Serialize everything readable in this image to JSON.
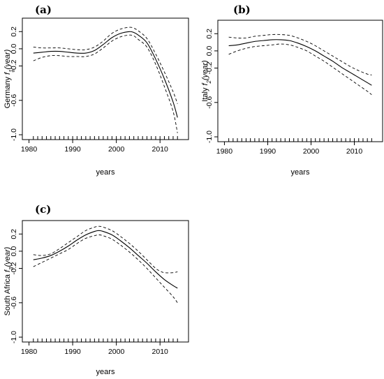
{
  "chart_data": [
    {
      "type": "line",
      "panel_label": "(a)",
      "xlabel": "years",
      "ylabel_prefix": "Germany ",
      "ylabel_f": "f",
      "ylabel_sub": "1",
      "ylabel_suffix": "(year)",
      "xlim": [
        1980,
        2015
      ],
      "ylim": [
        -1.0,
        0.3
      ],
      "xticks": [
        1980,
        1990,
        2000,
        2010
      ],
      "yticks": [
        -1.0,
        -0.6,
        -0.2,
        0.0,
        0.2
      ],
      "ytick_labels": [
        "-1.0",
        "-0.6",
        "-0.2",
        "0.0",
        "0.2"
      ],
      "rug": [
        1981,
        1982,
        1983,
        1984,
        1985,
        1986,
        1987,
        1988,
        1989,
        1990,
        1991,
        1992,
        1993,
        1994,
        1995,
        1996,
        1997,
        1998,
        1999,
        2000,
        2001,
        2002,
        2003,
        2004,
        2005,
        2006,
        2007,
        2008,
        2009,
        2010,
        2011,
        2012,
        2013,
        2014
      ],
      "series": [
        {
          "role": "fit",
          "x": [
            1981,
            1983,
            1985,
            1987,
            1989,
            1991,
            1993,
            1995,
            1997,
            1999,
            2001,
            2003,
            2004,
            2005,
            2007,
            2009,
            2011,
            2013,
            2014
          ],
          "values": [
            -0.05,
            -0.04,
            -0.03,
            -0.03,
            -0.04,
            -0.05,
            -0.05,
            -0.02,
            0.05,
            0.13,
            0.18,
            0.2,
            0.19,
            0.16,
            0.07,
            -0.12,
            -0.35,
            -0.62,
            -0.8
          ]
        },
        {
          "role": "upper",
          "x": [
            1981,
            1983,
            1985,
            1987,
            1989,
            1991,
            1993,
            1995,
            1997,
            1999,
            2001,
            2003,
            2004,
            2005,
            2007,
            2009,
            2011,
            2013,
            2014
          ],
          "values": [
            0.02,
            0.01,
            0.01,
            0.01,
            0.0,
            -0.01,
            -0.01,
            0.02,
            0.09,
            0.18,
            0.23,
            0.25,
            0.24,
            0.21,
            0.12,
            -0.06,
            -0.27,
            -0.5,
            -0.64
          ]
        },
        {
          "role": "lower",
          "x": [
            1981,
            1983,
            1985,
            1987,
            1989,
            1991,
            1993,
            1995,
            1997,
            1999,
            2001,
            2003,
            2004,
            2005,
            2007,
            2009,
            2011,
            2013,
            2014
          ],
          "values": [
            -0.14,
            -0.1,
            -0.08,
            -0.08,
            -0.09,
            -0.09,
            -0.09,
            -0.06,
            0.01,
            0.09,
            0.14,
            0.16,
            0.15,
            0.11,
            0.02,
            -0.18,
            -0.44,
            -0.73,
            -0.98
          ]
        }
      ]
    },
    {
      "type": "line",
      "panel_label": "(b)",
      "xlabel": "years",
      "ylabel_prefix": "Italy ",
      "ylabel_f": "f",
      "ylabel_sub": "2",
      "ylabel_suffix": "(year)",
      "xlim": [
        1980,
        2015
      ],
      "ylim": [
        -1.0,
        0.3
      ],
      "xticks": [
        1980,
        1990,
        2000,
        2010
      ],
      "yticks": [
        -1.0,
        -0.6,
        -0.2,
        0.0,
        0.2
      ],
      "ytick_labels": [
        "-1.0",
        "-0.6",
        "-0.2",
        "0.0",
        "0.2"
      ],
      "rug": [
        1981,
        1982,
        1983,
        1984,
        1985,
        1986,
        1987,
        1988,
        1989,
        1990,
        1991,
        1992,
        1993,
        1994,
        1995,
        1996,
        1997,
        1998,
        1999,
        2000,
        2001,
        2002,
        2003,
        2004,
        2005,
        2006,
        2007,
        2008,
        2009,
        2010,
        2011,
        2012,
        2013,
        2014
      ],
      "series": [
        {
          "role": "fit",
          "x": [
            1981,
            1983,
            1985,
            1987,
            1989,
            1991,
            1993,
            1995,
            1997,
            1999,
            2001,
            2003,
            2005,
            2007,
            2009,
            2011,
            2013,
            2014
          ],
          "values": [
            0.06,
            0.07,
            0.09,
            0.11,
            0.12,
            0.13,
            0.13,
            0.12,
            0.09,
            0.05,
            0.0,
            -0.06,
            -0.12,
            -0.19,
            -0.25,
            -0.31,
            -0.37,
            -0.4
          ]
        },
        {
          "role": "upper",
          "x": [
            1981,
            1983,
            1985,
            1987,
            1989,
            1991,
            1993,
            1995,
            1997,
            1999,
            2001,
            2003,
            2005,
            2007,
            2009,
            2011,
            2013,
            2014
          ],
          "values": [
            0.16,
            0.15,
            0.15,
            0.17,
            0.18,
            0.19,
            0.19,
            0.18,
            0.15,
            0.11,
            0.06,
            0.0,
            -0.06,
            -0.12,
            -0.18,
            -0.23,
            -0.27,
            -0.28
          ]
        },
        {
          "role": "lower",
          "x": [
            1981,
            1983,
            1985,
            1987,
            1989,
            1991,
            1993,
            1995,
            1997,
            1999,
            2001,
            2003,
            2005,
            2007,
            2009,
            2011,
            2013,
            2014
          ],
          "values": [
            -0.04,
            0.0,
            0.03,
            0.05,
            0.06,
            0.07,
            0.08,
            0.07,
            0.04,
            0.0,
            -0.06,
            -0.12,
            -0.19,
            -0.26,
            -0.33,
            -0.4,
            -0.47,
            -0.51
          ]
        }
      ]
    },
    {
      "type": "line",
      "panel_label": "(c)",
      "xlabel": "years",
      "ylabel_prefix": "South Africa ",
      "ylabel_f": "f",
      "ylabel_sub": "3",
      "ylabel_suffix": "(year)",
      "xlim": [
        1980,
        2015
      ],
      "ylim": [
        -1.0,
        0.3
      ],
      "xticks": [
        1980,
        1990,
        2000,
        2010
      ],
      "yticks": [
        -1.0,
        -0.6,
        -0.2,
        0.0,
        0.2
      ],
      "ytick_labels": [
        "-1.0",
        "-0.6",
        "-0.2",
        "0.0",
        "0.2"
      ],
      "rug": [
        1981,
        1982,
        1983,
        1984,
        1985,
        1986,
        1987,
        1988,
        1989,
        1990,
        1991,
        1992,
        1993,
        1994,
        1995,
        1996,
        1997,
        1998,
        1999,
        2000,
        2001,
        2002,
        2003,
        2004,
        2005,
        2006,
        2007,
        2008,
        2009,
        2010,
        2011,
        2012,
        2013,
        2014
      ],
      "series": [
        {
          "role": "fit",
          "x": [
            1981,
            1983,
            1985,
            1987,
            1989,
            1991,
            1993,
            1995,
            1996,
            1997,
            1999,
            2001,
            2003,
            2005,
            2007,
            2009,
            2011,
            2013,
            2014
          ],
          "values": [
            -0.1,
            -0.08,
            -0.05,
            0.0,
            0.06,
            0.13,
            0.19,
            0.23,
            0.24,
            0.23,
            0.19,
            0.12,
            0.04,
            -0.05,
            -0.14,
            -0.24,
            -0.33,
            -0.4,
            -0.43
          ]
        },
        {
          "role": "upper",
          "x": [
            1981,
            1983,
            1985,
            1987,
            1989,
            1991,
            1993,
            1995,
            1996,
            1997,
            1999,
            2001,
            2003,
            2005,
            2007,
            2009,
            2010,
            2011,
            2013,
            2014
          ],
          "values": [
            -0.04,
            -0.05,
            -0.03,
            0.03,
            0.1,
            0.17,
            0.24,
            0.28,
            0.29,
            0.28,
            0.24,
            0.17,
            0.09,
            0.0,
            -0.1,
            -0.2,
            -0.23,
            -0.25,
            -0.25,
            -0.24
          ]
        },
        {
          "role": "lower",
          "x": [
            1981,
            1983,
            1985,
            1987,
            1989,
            1991,
            1993,
            1995,
            1996,
            1997,
            1999,
            2001,
            2003,
            2005,
            2007,
            2009,
            2011,
            2013,
            2014
          ],
          "values": [
            -0.18,
            -0.13,
            -0.08,
            -0.03,
            0.02,
            0.09,
            0.15,
            0.18,
            0.19,
            0.18,
            0.14,
            0.07,
            -0.01,
            -0.1,
            -0.2,
            -0.31,
            -0.42,
            -0.53,
            -0.6
          ]
        }
      ]
    }
  ]
}
